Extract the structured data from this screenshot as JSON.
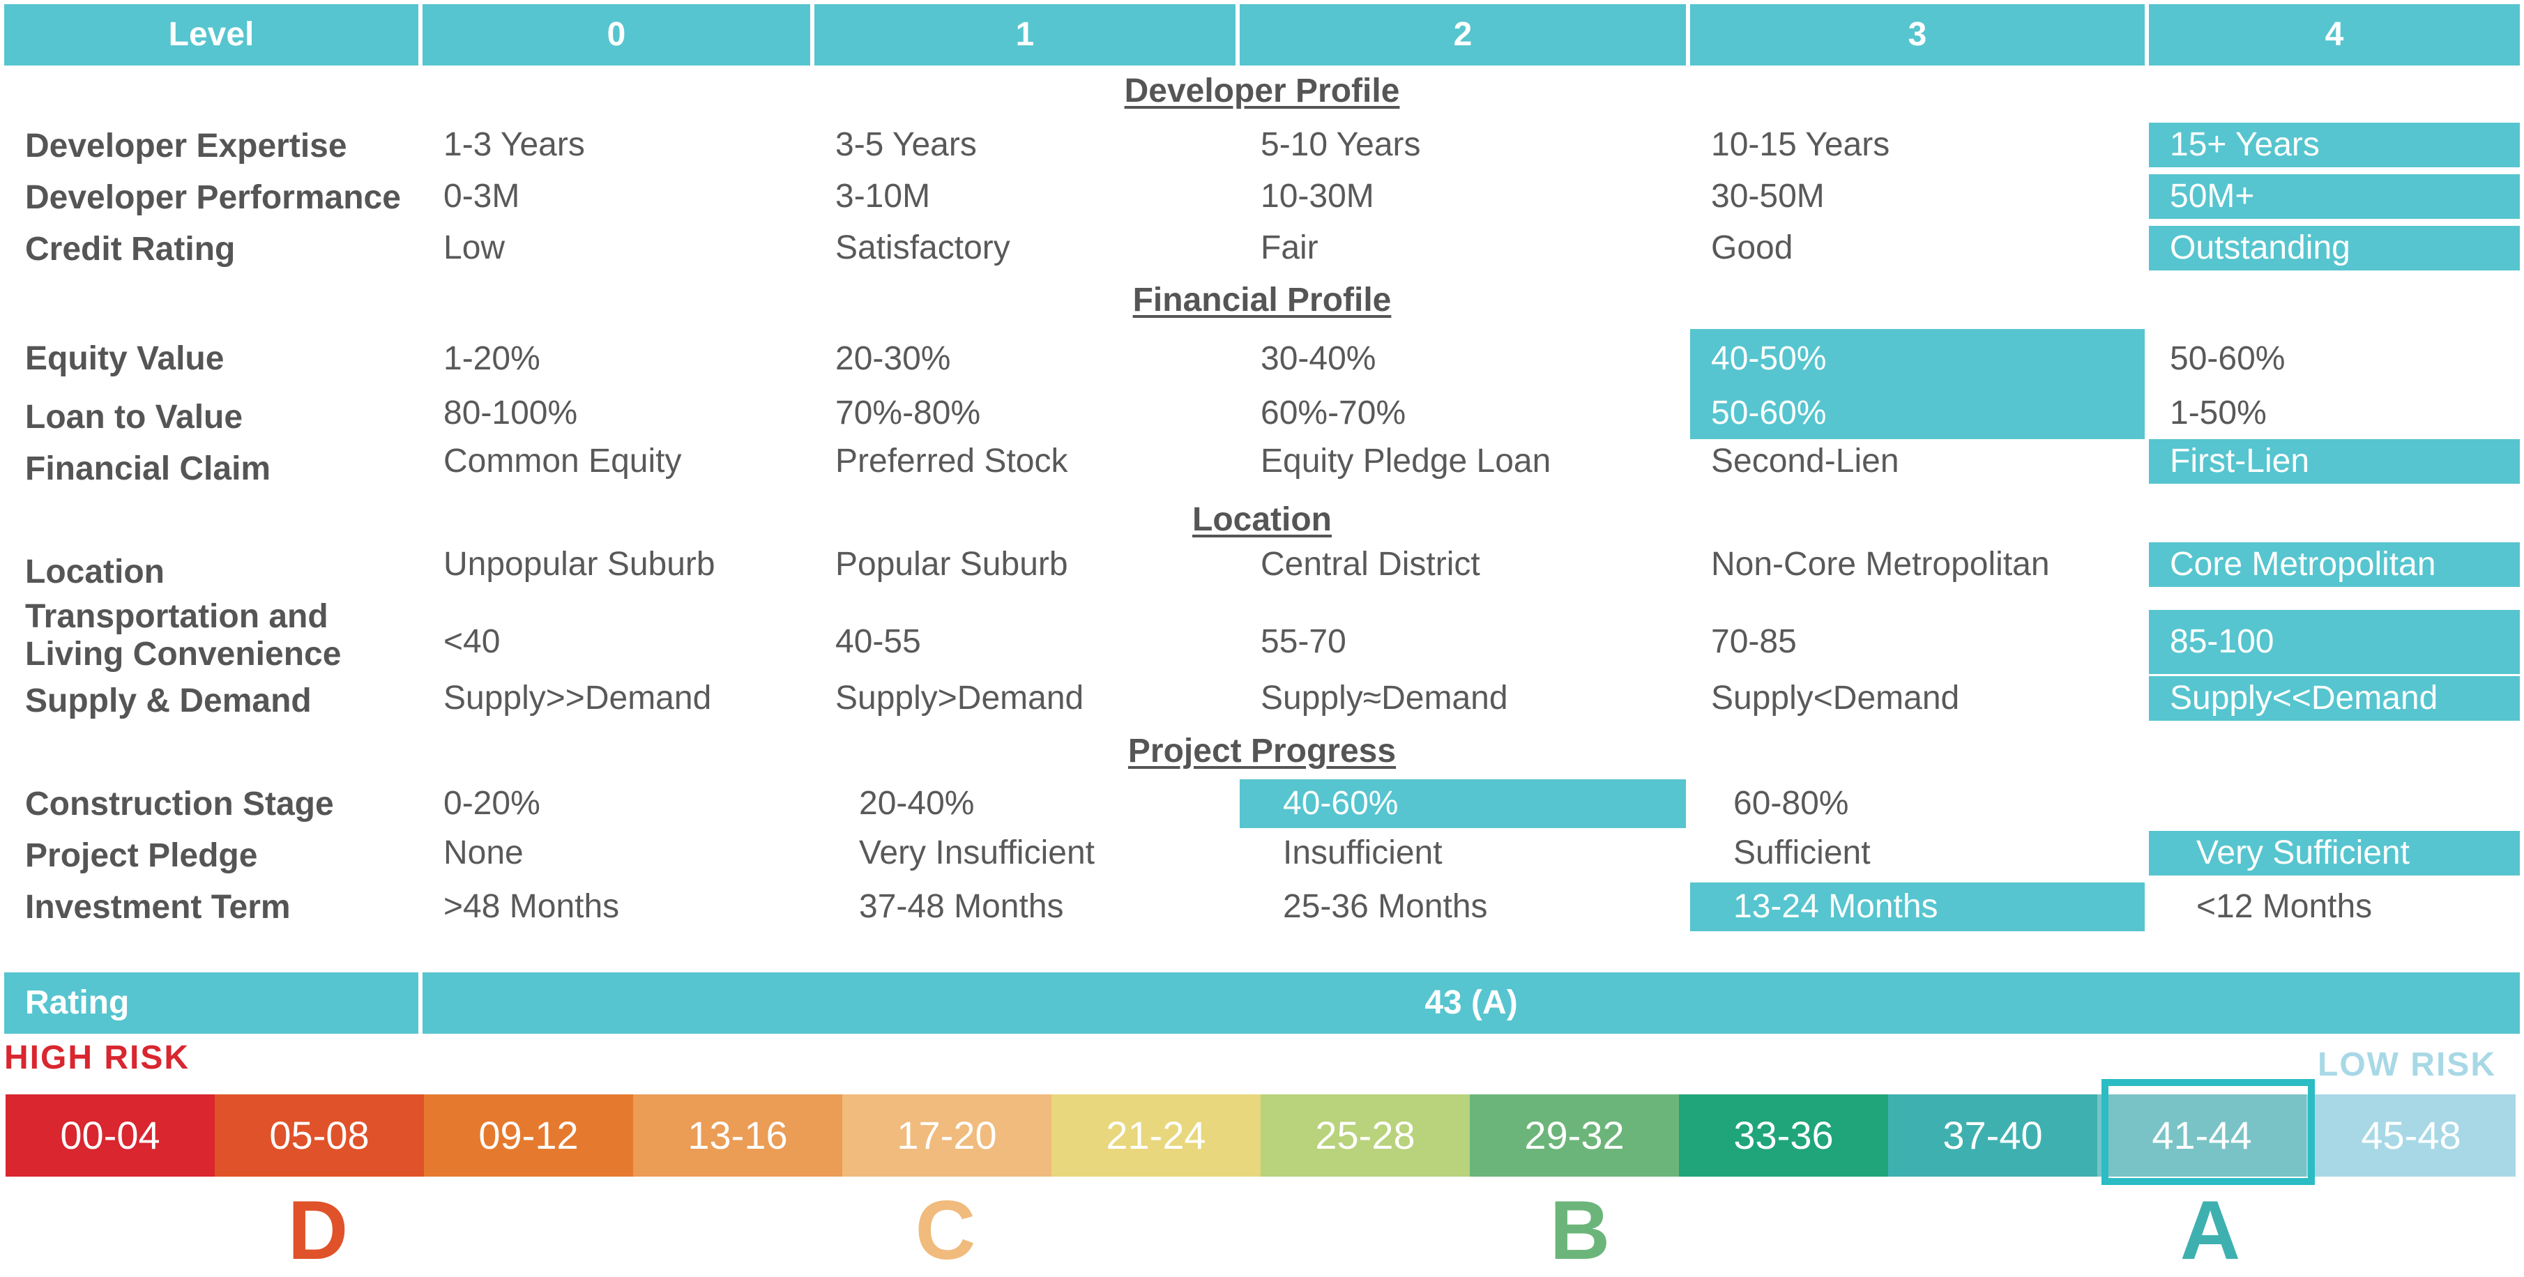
{
  "header": {
    "level_label": "Level",
    "levels": [
      "0",
      "1",
      "2",
      "3",
      "4"
    ]
  },
  "sections": {
    "developer_profile": "Developer Profile",
    "financial_profile": "Financial Profile",
    "location": "Location",
    "project_progress": "Project Progress"
  },
  "rows": [
    {
      "label": "Developer Expertise",
      "cells": [
        "1-3 Years",
        "3-5 Years",
        "5-10 Years",
        "10-15 Years",
        "15+ Years"
      ],
      "highlight": 4
    },
    {
      "label": "Developer Performance",
      "cells": [
        "0-3M",
        "3-10M",
        "10-30M",
        "30-50M",
        "50M+"
      ],
      "highlight": 4
    },
    {
      "label": "Credit Rating",
      "cells": [
        "Low",
        "Satisfactory",
        "Fair",
        "Good",
        "Outstanding"
      ],
      "highlight": 4
    },
    {
      "label": "Equity Value",
      "cells": [
        "1-20%",
        "20-30%",
        "30-40%",
        "40-50%",
        "50-60%"
      ],
      "highlight": 3
    },
    {
      "label": "Loan to Value",
      "cells": [
        "80-100%",
        "70%-80%",
        "60%-70%",
        "50-60%",
        "1-50%"
      ],
      "highlight": 3
    },
    {
      "label": "Financial Claim",
      "cells": [
        "Common Equity",
        "Preferred Stock",
        "Equity Pledge Loan",
        "Second-Lien",
        "First-Lien"
      ],
      "highlight": 4
    },
    {
      "label": "Location",
      "cells": [
        "Unpopular Suburb",
        "Popular Suburb",
        "Central District",
        "Non-Core Metropolitan",
        "Core Metropolitan"
      ],
      "highlight": 4
    },
    {
      "label": "Transportation and\nLiving Convenience",
      "cells": [
        "<40",
        "40-55",
        "55-70",
        "70-85",
        "85-100"
      ],
      "highlight": 4
    },
    {
      "label": "Supply & Demand",
      "cells": [
        "Supply>>Demand",
        "Supply>Demand",
        "Supply≈Demand",
        "Supply<Demand",
        "Supply<<Demand"
      ],
      "highlight": 4
    },
    {
      "label": "Construction Stage",
      "cells": [
        "0-20%",
        "20-40%",
        "40-60%",
        "60-80%",
        ""
      ],
      "highlight": 2
    },
    {
      "label": "Project Pledge",
      "cells": [
        "None",
        "Very Insufficient",
        "Insufficient",
        "Sufficient",
        "Very Sufficient"
      ],
      "highlight": 4
    },
    {
      "label": "Investment Term",
      "cells": [
        ">48 Months",
        "37-48 Months",
        "25-36 Months",
        "13-24 Months",
        "<12 Months"
      ],
      "highlight": 3
    }
  ],
  "rating": {
    "label": "Rating",
    "value": "43 (A)"
  },
  "risk": {
    "high_label": "HIGH RISK",
    "low_label": "LOW RISK",
    "high_color": "#d9262f",
    "low_color": "#a8d8e6"
  },
  "scale": {
    "selected_index": 10,
    "segments": [
      {
        "label": "00-04",
        "color": "#d9262f"
      },
      {
        "label": "05-08",
        "color": "#e05229"
      },
      {
        "label": "09-12",
        "color": "#e57a2e"
      },
      {
        "label": "13-16",
        "color": "#eb9c55"
      },
      {
        "label": "17-20",
        "color": "#f0bb7c"
      },
      {
        "label": "21-24",
        "color": "#e8d77c"
      },
      {
        "label": "25-28",
        "color": "#b9d27c"
      },
      {
        "label": "29-32",
        "color": "#6cb57a"
      },
      {
        "label": "33-36",
        "color": "#1fa579"
      },
      {
        "label": "37-40",
        "color": "#3fb0b0"
      },
      {
        "label": "41-44",
        "color": "#79c3c6"
      },
      {
        "label": "45-48",
        "color": "#a8d8e6"
      }
    ]
  },
  "grades": [
    {
      "letter": "D",
      "color": "#e05229"
    },
    {
      "letter": "C",
      "color": "#f0bb7c"
    },
    {
      "letter": "B",
      "color": "#6cb57a"
    },
    {
      "letter": "A",
      "color": "#3fb0b0"
    }
  ]
}
